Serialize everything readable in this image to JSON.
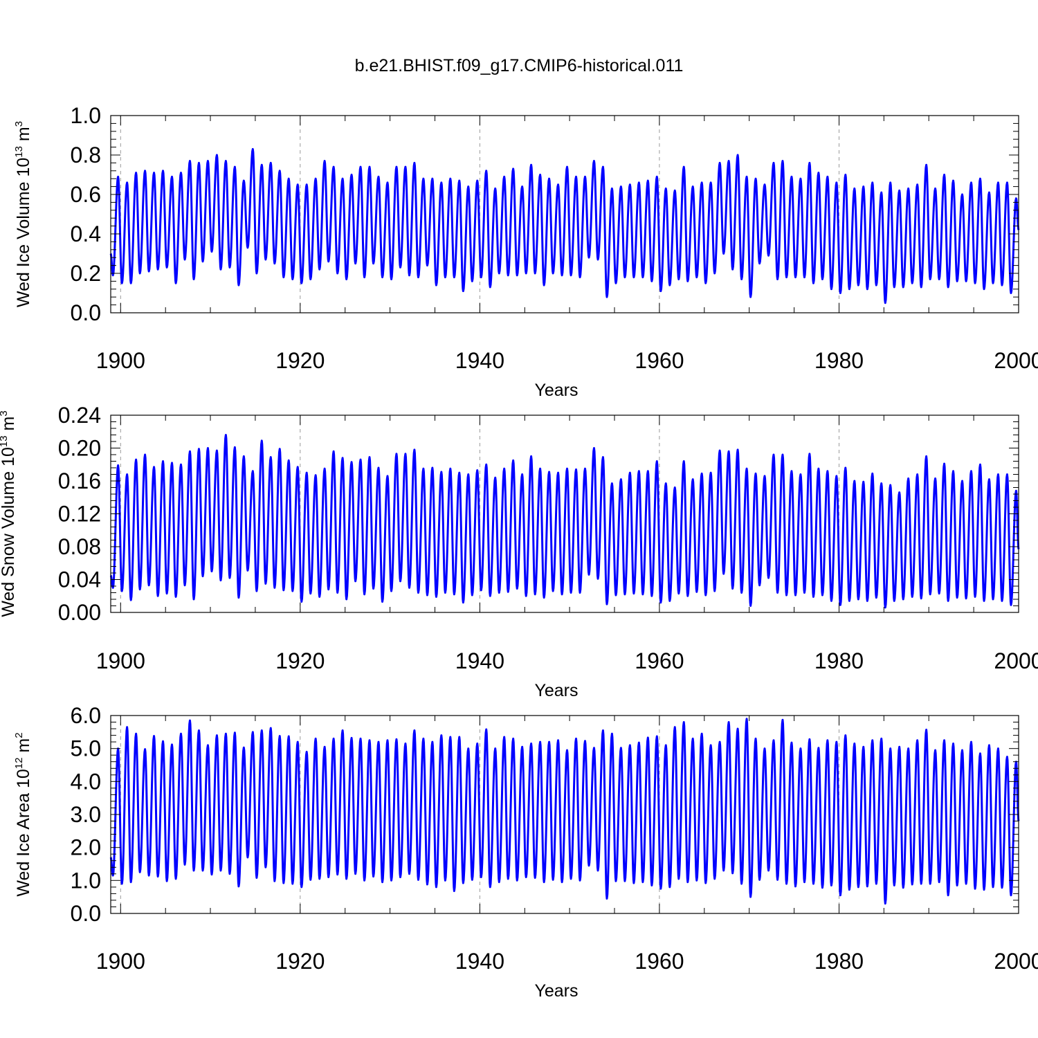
{
  "title": "b.e21.BHIST.f09_g17.CMIP6-historical.011",
  "line_color": "#0000ff",
  "chart_data": [
    {
      "type": "line",
      "name": "ice-volume",
      "ylabel_main": "Wed Ice Volume 10",
      "ylabel_exp": "13",
      "ylabel_unit": " m",
      "ylabel_unit_exp": "3",
      "xlabel": "Years",
      "xlim": [
        1898.9,
        2000.0
      ],
      "ylim": [
        0.0,
        1.0
      ],
      "xticks": [
        1900,
        1920,
        1940,
        1960,
        1980,
        2000
      ],
      "xtick_labels": [
        "1900",
        "1920",
        "1940",
        "1960",
        "1980",
        "2000"
      ],
      "yticks": [
        0.0,
        0.2,
        0.4,
        0.6,
        0.8,
        1.0
      ],
      "ytick_labels": [
        "0.0",
        "0.2",
        "0.4",
        "0.6",
        "0.8",
        "1.0"
      ],
      "start": 0.3,
      "end": 0.42,
      "series": [
        {
          "name": "Wed Ice Volume",
          "years": [
            1899,
            1900,
            1901,
            1902,
            1903,
            1904,
            1905,
            1906,
            1907,
            1908,
            1909,
            1910,
            1911,
            1912,
            1913,
            1914,
            1915,
            1916,
            1917,
            1918,
            1919,
            1920,
            1921,
            1922,
            1923,
            1924,
            1925,
            1926,
            1927,
            1928,
            1929,
            1930,
            1931,
            1932,
            1933,
            1934,
            1935,
            1936,
            1937,
            1938,
            1939,
            1940,
            1941,
            1942,
            1943,
            1944,
            1945,
            1946,
            1947,
            1948,
            1949,
            1950,
            1951,
            1952,
            1953,
            1954,
            1955,
            1956,
            1957,
            1958,
            1959,
            1960,
            1961,
            1962,
            1963,
            1964,
            1965,
            1966,
            1967,
            1968,
            1969,
            1970,
            1971,
            1972,
            1973,
            1974,
            1975,
            1976,
            1977,
            1978,
            1979,
            1980,
            1981,
            1982,
            1983,
            1984,
            1985,
            1986,
            1987,
            1988,
            1989,
            1990,
            1991,
            1992,
            1993,
            1994,
            1995,
            1996,
            1997,
            1998,
            1999
          ],
          "max": [
            0.69,
            0.66,
            0.71,
            0.72,
            0.71,
            0.72,
            0.69,
            0.71,
            0.77,
            0.76,
            0.77,
            0.8,
            0.77,
            0.74,
            0.67,
            0.83,
            0.75,
            0.76,
            0.72,
            0.68,
            0.65,
            0.65,
            0.68,
            0.77,
            0.74,
            0.68,
            0.7,
            0.74,
            0.74,
            0.69,
            0.66,
            0.74,
            0.74,
            0.76,
            0.68,
            0.68,
            0.66,
            0.68,
            0.67,
            0.64,
            0.67,
            0.72,
            0.63,
            0.69,
            0.73,
            0.64,
            0.75,
            0.7,
            0.68,
            0.65,
            0.74,
            0.69,
            0.69,
            0.77,
            0.74,
            0.63,
            0.64,
            0.65,
            0.66,
            0.67,
            0.69,
            0.63,
            0.62,
            0.74,
            0.64,
            0.66,
            0.66,
            0.76,
            0.77,
            0.8,
            0.69,
            0.68,
            0.65,
            0.76,
            0.77,
            0.69,
            0.68,
            0.76,
            0.71,
            0.69,
            0.66,
            0.7,
            0.63,
            0.64,
            0.66,
            0.61,
            0.66,
            0.62,
            0.63,
            0.65,
            0.75,
            0.63,
            0.7,
            0.67,
            0.6,
            0.66,
            0.68,
            0.61,
            0.66,
            0.66,
            0.58
          ],
          "min": [
            0.19,
            0.15,
            0.15,
            0.2,
            0.21,
            0.22,
            0.23,
            0.15,
            0.27,
            0.17,
            0.26,
            0.31,
            0.22,
            0.23,
            0.14,
            0.33,
            0.2,
            0.27,
            0.25,
            0.18,
            0.17,
            0.15,
            0.17,
            0.22,
            0.26,
            0.2,
            0.17,
            0.25,
            0.18,
            0.25,
            0.18,
            0.17,
            0.23,
            0.19,
            0.18,
            0.24,
            0.14,
            0.18,
            0.18,
            0.11,
            0.16,
            0.18,
            0.13,
            0.2,
            0.19,
            0.19,
            0.2,
            0.2,
            0.14,
            0.2,
            0.19,
            0.19,
            0.18,
            0.28,
            0.27,
            0.08,
            0.15,
            0.18,
            0.18,
            0.18,
            0.16,
            0.11,
            0.14,
            0.17,
            0.16,
            0.18,
            0.15,
            0.2,
            0.3,
            0.22,
            0.17,
            0.08,
            0.25,
            0.29,
            0.17,
            0.18,
            0.18,
            0.18,
            0.15,
            0.17,
            0.12,
            0.1,
            0.12,
            0.14,
            0.12,
            0.14,
            0.05,
            0.13,
            0.13,
            0.15,
            0.13,
            0.17,
            0.17,
            0.13,
            0.16,
            0.16,
            0.15,
            0.12,
            0.15,
            0.14,
            0.1
          ]
        }
      ]
    },
    {
      "type": "line",
      "name": "snow-volume",
      "ylabel_main": "Wed Snow Volume 10",
      "ylabel_exp": "13",
      "ylabel_unit": " m",
      "ylabel_unit_exp": "3",
      "xlabel": "Years",
      "xlim": [
        1898.9,
        2000.0
      ],
      "ylim": [
        0.0,
        0.24
      ],
      "xticks": [
        1900,
        1920,
        1940,
        1960,
        1980,
        2000
      ],
      "xtick_labels": [
        "1900",
        "1920",
        "1940",
        "1960",
        "1980",
        "2000"
      ],
      "yticks": [
        0.0,
        0.04,
        0.08,
        0.12,
        0.16,
        0.2,
        0.24
      ],
      "ytick_labels": [
        "0.00",
        "0.04",
        "0.08",
        "0.12",
        "0.16",
        "0.20",
        "0.24"
      ],
      "start": 0.045,
      "end": 0.077,
      "series": [
        {
          "name": "Wed Snow Volume",
          "years": [
            1899,
            1900,
            1901,
            1902,
            1903,
            1904,
            1905,
            1906,
            1907,
            1908,
            1909,
            1910,
            1911,
            1912,
            1913,
            1914,
            1915,
            1916,
            1917,
            1918,
            1919,
            1920,
            1921,
            1922,
            1923,
            1924,
            1925,
            1926,
            1927,
            1928,
            1929,
            1930,
            1931,
            1932,
            1933,
            1934,
            1935,
            1936,
            1937,
            1938,
            1939,
            1940,
            1941,
            1942,
            1943,
            1944,
            1945,
            1946,
            1947,
            1948,
            1949,
            1950,
            1951,
            1952,
            1953,
            1954,
            1955,
            1956,
            1957,
            1958,
            1959,
            1960,
            1961,
            1962,
            1963,
            1964,
            1965,
            1966,
            1967,
            1968,
            1969,
            1970,
            1971,
            1972,
            1973,
            1974,
            1975,
            1976,
            1977,
            1978,
            1979,
            1980,
            1981,
            1982,
            1983,
            1984,
            1985,
            1986,
            1987,
            1988,
            1989,
            1990,
            1991,
            1992,
            1993,
            1994,
            1995,
            1996,
            1997,
            1998,
            1999
          ],
          "max": [
            0.179,
            0.168,
            0.186,
            0.192,
            0.177,
            0.184,
            0.182,
            0.18,
            0.196,
            0.199,
            0.2,
            0.197,
            0.216,
            0.201,
            0.19,
            0.172,
            0.209,
            0.189,
            0.199,
            0.185,
            0.177,
            0.17,
            0.167,
            0.175,
            0.196,
            0.188,
            0.183,
            0.186,
            0.189,
            0.176,
            0.166,
            0.193,
            0.193,
            0.198,
            0.175,
            0.176,
            0.171,
            0.175,
            0.17,
            0.168,
            0.173,
            0.18,
            0.164,
            0.175,
            0.185,
            0.168,
            0.19,
            0.175,
            0.171,
            0.17,
            0.175,
            0.174,
            0.175,
            0.2,
            0.189,
            0.157,
            0.162,
            0.17,
            0.172,
            0.172,
            0.184,
            0.157,
            0.152,
            0.184,
            0.162,
            0.169,
            0.17,
            0.197,
            0.196,
            0.198,
            0.175,
            0.169,
            0.166,
            0.192,
            0.192,
            0.172,
            0.168,
            0.193,
            0.175,
            0.172,
            0.166,
            0.176,
            0.16,
            0.159,
            0.169,
            0.157,
            0.155,
            0.146,
            0.163,
            0.168,
            0.19,
            0.163,
            0.181,
            0.172,
            0.16,
            0.172,
            0.18,
            0.162,
            0.168,
            0.168,
            0.148
          ],
          "min": [
            0.03,
            0.026,
            0.015,
            0.028,
            0.033,
            0.02,
            0.023,
            0.019,
            0.033,
            0.016,
            0.044,
            0.05,
            0.039,
            0.042,
            0.018,
            0.051,
            0.026,
            0.035,
            0.03,
            0.027,
            0.026,
            0.013,
            0.023,
            0.019,
            0.028,
            0.024,
            0.016,
            0.038,
            0.022,
            0.029,
            0.013,
            0.026,
            0.038,
            0.03,
            0.024,
            0.021,
            0.019,
            0.024,
            0.022,
            0.012,
            0.021,
            0.027,
            0.02,
            0.024,
            0.025,
            0.029,
            0.02,
            0.022,
            0.018,
            0.026,
            0.022,
            0.024,
            0.024,
            0.046,
            0.041,
            0.01,
            0.021,
            0.022,
            0.023,
            0.022,
            0.02,
            0.012,
            0.014,
            0.023,
            0.02,
            0.025,
            0.021,
            0.026,
            0.047,
            0.029,
            0.024,
            0.008,
            0.033,
            0.042,
            0.024,
            0.021,
            0.021,
            0.024,
            0.019,
            0.021,
            0.014,
            0.009,
            0.014,
            0.016,
            0.014,
            0.018,
            0.006,
            0.014,
            0.016,
            0.019,
            0.017,
            0.022,
            0.023,
            0.014,
            0.018,
            0.017,
            0.019,
            0.014,
            0.016,
            0.014,
            0.009
          ]
        }
      ]
    },
    {
      "type": "line",
      "name": "ice-area",
      "ylabel_main": "Wed Ice Area 10",
      "ylabel_exp": "12",
      "ylabel_unit": " m",
      "ylabel_unit_exp": "2",
      "xlabel": "Years",
      "xlim": [
        1898.9,
        2000.0
      ],
      "ylim": [
        0.0,
        6.0
      ],
      "xticks": [
        1900,
        1920,
        1940,
        1960,
        1980,
        2000
      ],
      "xtick_labels": [
        "1900",
        "1920",
        "1940",
        "1960",
        "1980",
        "2000"
      ],
      "yticks": [
        0.0,
        1.0,
        2.0,
        3.0,
        4.0,
        5.0,
        6.0
      ],
      "ytick_labels": [
        "0.0",
        "1.0",
        "2.0",
        "3.0",
        "4.0",
        "5.0",
        "6.0"
      ],
      "start": 1.7,
      "end": 2.8,
      "series": [
        {
          "name": "Wed Ice Area",
          "years": [
            1899,
            1900,
            1901,
            1902,
            1903,
            1904,
            1905,
            1906,
            1907,
            1908,
            1909,
            1910,
            1911,
            1912,
            1913,
            1914,
            1915,
            1916,
            1917,
            1918,
            1919,
            1920,
            1921,
            1922,
            1923,
            1924,
            1925,
            1926,
            1927,
            1928,
            1929,
            1930,
            1931,
            1932,
            1933,
            1934,
            1935,
            1936,
            1937,
            1938,
            1939,
            1940,
            1941,
            1942,
            1943,
            1944,
            1945,
            1946,
            1947,
            1948,
            1949,
            1950,
            1951,
            1952,
            1953,
            1954,
            1955,
            1956,
            1957,
            1958,
            1959,
            1960,
            1961,
            1962,
            1963,
            1964,
            1965,
            1966,
            1967,
            1968,
            1969,
            1970,
            1971,
            1972,
            1973,
            1974,
            1975,
            1976,
            1977,
            1978,
            1979,
            1980,
            1981,
            1982,
            1983,
            1984,
            1985,
            1986,
            1987,
            1988,
            1989,
            1990,
            1991,
            1992,
            1993,
            1994,
            1995,
            1996,
            1997,
            1998,
            1999
          ],
          "max": [
            5.0,
            5.65,
            5.45,
            4.98,
            5.38,
            5.22,
            5.12,
            5.45,
            5.85,
            5.55,
            5.1,
            5.4,
            5.45,
            5.48,
            5.03,
            5.5,
            5.55,
            5.62,
            5.38,
            5.37,
            5.2,
            4.9,
            5.3,
            5.05,
            5.3,
            5.55,
            5.32,
            5.3,
            5.25,
            5.2,
            5.25,
            5.28,
            5.15,
            5.55,
            5.3,
            5.2,
            5.4,
            5.35,
            5.35,
            5.0,
            5.15,
            5.58,
            5.0,
            5.35,
            5.3,
            5.05,
            5.15,
            5.2,
            5.2,
            5.25,
            4.95,
            5.3,
            5.23,
            5.02,
            5.55,
            5.45,
            5.02,
            5.1,
            5.18,
            5.33,
            5.37,
            5.1,
            5.65,
            5.8,
            5.3,
            5.45,
            5.1,
            5.2,
            5.8,
            5.6,
            5.9,
            5.3,
            5.0,
            5.25,
            5.87,
            5.18,
            5.0,
            5.28,
            5.02,
            5.25,
            5.2,
            5.4,
            5.15,
            5.05,
            5.25,
            5.3,
            5.0,
            5.05,
            5.0,
            5.25,
            5.57,
            4.95,
            5.25,
            5.15,
            4.95,
            5.2,
            4.85,
            5.1,
            5.0,
            4.75,
            4.6
          ],
          "min": [
            1.15,
            0.9,
            0.95,
            1.25,
            1.15,
            1.12,
            0.98,
            1.05,
            1.48,
            1.3,
            1.3,
            1.18,
            1.3,
            1.2,
            0.82,
            1.7,
            1.08,
            1.4,
            0.98,
            0.92,
            0.9,
            0.8,
            1.02,
            1.05,
            1.1,
            1.18,
            1.05,
            1.2,
            1.0,
            1.12,
            0.95,
            1.0,
            1.1,
            1.2,
            1.02,
            0.88,
            0.8,
            1.0,
            0.68,
            0.92,
            1.02,
            1.1,
            0.8,
            0.95,
            1.05,
            1.0,
            1.1,
            1.08,
            0.95,
            1.02,
            0.95,
            1.05,
            1.0,
            1.45,
            1.3,
            0.45,
            0.98,
            0.98,
            0.92,
            0.95,
            0.85,
            0.75,
            0.8,
            1.05,
            0.95,
            1.0,
            0.92,
            1.05,
            1.3,
            1.22,
            0.9,
            0.5,
            1.02,
            1.3,
            1.02,
            0.9,
            0.82,
            0.95,
            0.9,
            0.78,
            0.85,
            0.55,
            0.72,
            0.8,
            0.82,
            0.9,
            0.3,
            0.85,
            0.78,
            0.88,
            0.9,
            0.9,
            0.95,
            0.55,
            0.85,
            0.9,
            0.75,
            0.72,
            0.8,
            0.78,
            0.55
          ]
        }
      ]
    }
  ]
}
